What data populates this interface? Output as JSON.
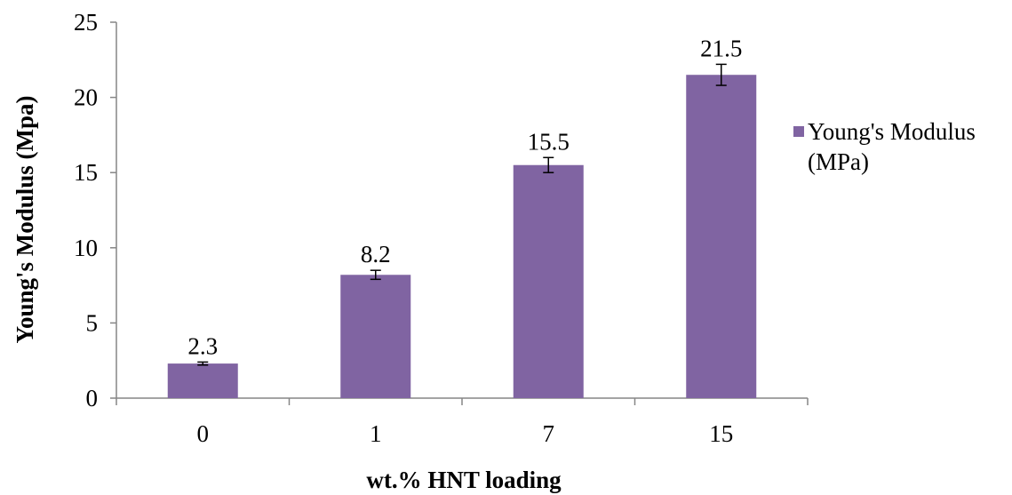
{
  "chart_data": {
    "type": "bar",
    "categories": [
      "0",
      "1",
      "7",
      "15"
    ],
    "series": [
      {
        "name": "Young's Modulus (MPa)",
        "legend_lines": [
          "Young's Modulus",
          "(MPa)"
        ],
        "values": [
          2.3,
          8.2,
          15.5,
          21.5
        ],
        "data_labels": [
          "2.3",
          "8.2",
          "15.5",
          "21.5"
        ],
        "error": [
          0.1,
          0.3,
          0.5,
          0.7
        ],
        "color": "#8064a2"
      }
    ],
    "xlabel": "wt.% HNT loading",
    "ylabel": "Young's Modulus (Mpa)",
    "ylim": [
      0,
      25
    ],
    "yticks": [
      "0",
      "5",
      "10",
      "15",
      "20",
      "25"
    ],
    "grid": false,
    "legend_position": "right"
  }
}
